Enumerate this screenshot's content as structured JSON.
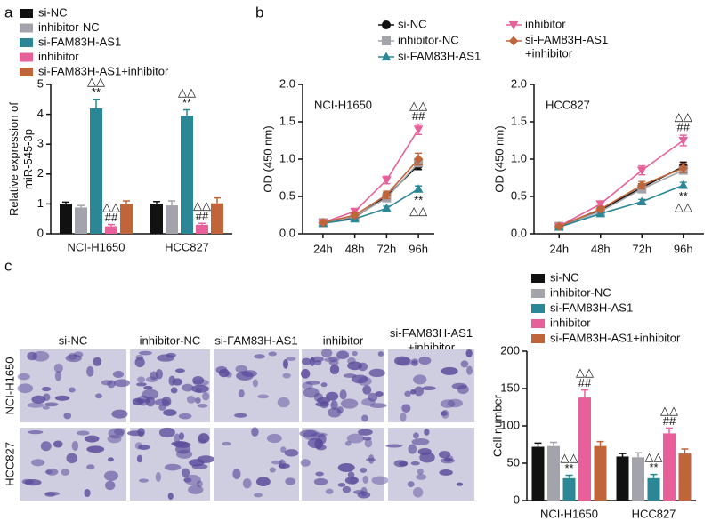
{
  "chart_data": [
    {
      "type": "bar",
      "panel_label": "a",
      "ylabel": "Relative expression of\nmiR-545-3p",
      "categories": [
        "NCI-H1650",
        "HCC827"
      ],
      "ylim": [
        0,
        5
      ],
      "yticks": [
        0,
        1,
        2,
        3,
        4,
        5
      ],
      "series": [
        {
          "name": "si-NC",
          "color": "#111111",
          "values": [
            1.0,
            1.0
          ],
          "errors": [
            0.06,
            0.08
          ]
        },
        {
          "name": "inhibitor-NC",
          "color": "#a3a3ab",
          "values": [
            0.88,
            0.95
          ],
          "errors": [
            0.07,
            0.15
          ]
        },
        {
          "name": "si-FAM83H-AS1",
          "color": "#2b8796",
          "values": [
            4.2,
            3.95
          ],
          "errors": [
            0.3,
            0.2
          ],
          "annotations": [
            [
              "△△",
              "**"
            ],
            [
              "△△",
              "**"
            ]
          ]
        },
        {
          "name": "inhibitor",
          "color": "#e8609a",
          "values": [
            0.25,
            0.3
          ],
          "errors": [
            0.06,
            0.05
          ],
          "annotations": [
            [
              "△△",
              "##"
            ],
            [
              "△△",
              "##"
            ]
          ]
        },
        {
          "name": "si-FAM83H-AS1+inhibitor",
          "color": "#c0643a",
          "values": [
            1.0,
            1.02
          ],
          "errors": [
            0.1,
            0.18
          ]
        }
      ]
    },
    {
      "type": "line",
      "panel_label": "b",
      "title": "NCI-H1650",
      "ylabel": "OD (450 nm)",
      "categories": [
        "24h",
        "48h",
        "72h",
        "96h"
      ],
      "ylim": [
        0,
        2
      ],
      "yticks": [
        {
          "value": 0,
          "label": "0.0"
        },
        0.5,
        {
          "value": 1,
          "label": "1.0"
        },
        1.5,
        {
          "value": 2,
          "label": "2.0"
        }
      ],
      "series": [
        {
          "name": "si-NC",
          "color": "#111111",
          "marker": "circle",
          "values": [
            0.15,
            0.22,
            0.5,
            0.92
          ],
          "errors": [
            0.02,
            0.02,
            0.05,
            0.06
          ]
        },
        {
          "name": "inhibitor-NC",
          "color": "#a3a3ab",
          "marker": "square",
          "values": [
            0.15,
            0.23,
            0.48,
            0.95
          ],
          "errors": [
            0.02,
            0.02,
            0.04,
            0.05
          ]
        },
        {
          "name": "si-FAM83H-AS1",
          "color": "#2b8796",
          "marker": "triangle",
          "values": [
            0.14,
            0.2,
            0.34,
            0.6
          ],
          "errors": [
            0.02,
            0.02,
            0.03,
            0.04
          ],
          "annotations": [
            null,
            null,
            null,
            [
              "**",
              "△△"
            ]
          ],
          "annotation_position": "below"
        },
        {
          "name": "inhibitor",
          "color": "#e8609a",
          "marker": "triangle-down",
          "values": [
            0.15,
            0.3,
            0.72,
            1.4
          ],
          "errors": [
            0.02,
            0.03,
            0.05,
            0.07
          ],
          "annotations": [
            null,
            null,
            null,
            [
              "△△",
              "##"
            ]
          ]
        },
        {
          "name": "si-FAM83H-AS1\n+inhibitor",
          "color": "#c0643a",
          "marker": "diamond",
          "values": [
            0.15,
            0.25,
            0.52,
            1.0
          ],
          "errors": [
            0.02,
            0.03,
            0.05,
            0.08
          ]
        }
      ]
    },
    {
      "type": "line",
      "title": "HCC827",
      "ylabel": "OD (450 nm)",
      "categories": [
        "24h",
        "48h",
        "72h",
        "96h"
      ],
      "ylim": [
        0,
        2
      ],
      "yticks": [
        {
          "value": 0,
          "label": "0.0"
        },
        0.5,
        {
          "value": 1,
          "label": "1.0"
        },
        1.5,
        {
          "value": 2,
          "label": "2.0"
        }
      ],
      "series": [
        {
          "color": "#111111",
          "marker": "circle",
          "values": [
            0.1,
            0.32,
            0.62,
            0.9
          ],
          "errors": [
            0.02,
            0.03,
            0.05,
            0.06
          ]
        },
        {
          "color": "#a3a3ab",
          "marker": "square",
          "values": [
            0.1,
            0.3,
            0.6,
            0.85
          ],
          "errors": [
            0.02,
            0.03,
            0.04,
            0.05
          ]
        },
        {
          "color": "#2b8796",
          "marker": "triangle",
          "values": [
            0.09,
            0.27,
            0.43,
            0.65
          ],
          "errors": [
            0.02,
            0.02,
            0.03,
            0.04
          ],
          "annotations": [
            null,
            null,
            null,
            [
              "**",
              "△△"
            ]
          ],
          "annotation_position": "below"
        },
        {
          "color": "#e8609a",
          "marker": "triangle-down",
          "values": [
            0.1,
            0.4,
            0.85,
            1.25
          ],
          "errors": [
            0.02,
            0.03,
            0.06,
            0.07
          ],
          "annotations": [
            null,
            null,
            null,
            [
              "△△",
              "##"
            ]
          ]
        },
        {
          "color": "#c0643a",
          "marker": "diamond",
          "values": [
            0.1,
            0.33,
            0.65,
            0.88
          ],
          "errors": [
            0.02,
            0.03,
            0.05,
            0.06
          ]
        }
      ]
    },
    {
      "type": "bar",
      "ylabel": "Cell number",
      "categories": [
        "NCI-H1650",
        "HCC827"
      ],
      "ylim": [
        0,
        200
      ],
      "yticks": [
        0,
        50,
        100,
        150,
        200
      ],
      "series": [
        {
          "name": "si-NC",
          "color": "#111111",
          "values": [
            72,
            59
          ],
          "errors": [
            5,
            4
          ]
        },
        {
          "name": "inhibitor-NC",
          "color": "#a3a3ab",
          "values": [
            73,
            58
          ],
          "errors": [
            5,
            6
          ]
        },
        {
          "name": "si-FAM83H-AS1",
          "color": "#2b8796",
          "values": [
            30,
            30
          ],
          "errors": [
            4,
            5
          ],
          "annotations": [
            [
              "△△",
              "**"
            ],
            [
              "△△",
              "**"
            ]
          ]
        },
        {
          "name": "inhibitor",
          "color": "#e8609a",
          "values": [
            138,
            90
          ],
          "errors": [
            10,
            7
          ],
          "annotations": [
            [
              "△△",
              "##"
            ],
            [
              "△△",
              "##"
            ]
          ]
        },
        {
          "name": "si-FAM83H-AS1+inhibitor",
          "color": "#c0643a",
          "values": [
            73,
            63
          ],
          "errors": [
            6,
            6
          ]
        }
      ]
    }
  ],
  "image_grid": {
    "panel_label": "c",
    "columns": [
      "si-NC",
      "inhibitor-NC",
      "si-FAM83H-AS1",
      "inhibitor",
      "si-FAM83H-AS1\n+inhibitor"
    ],
    "rows": [
      "NCI-H1650",
      "HCC827"
    ]
  }
}
